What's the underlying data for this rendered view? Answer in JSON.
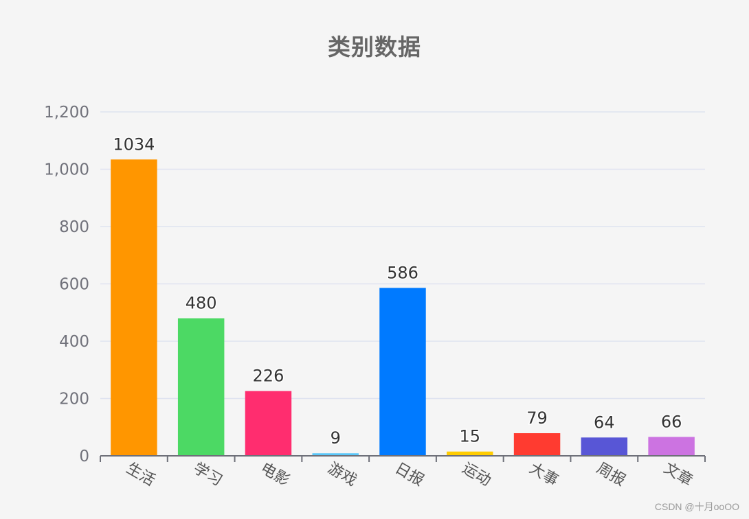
{
  "chart_data": {
    "type": "bar",
    "title": "类别数据",
    "categories": [
      "生活",
      "学习",
      "电影",
      "游戏",
      "日报",
      "运动",
      "大事",
      "周报",
      "文章"
    ],
    "values": [
      1034,
      480,
      226,
      9,
      586,
      15,
      79,
      64,
      66
    ],
    "data_labels": [
      "1034",
      "480",
      "226",
      "9",
      "586",
      "15",
      "79",
      "64",
      "66"
    ],
    "bar_colors": [
      "#ff9600",
      "#4cd964",
      "#ff2d6f",
      "#5ac8fa",
      "#007aff",
      "#ffcc00",
      "#ff3b30",
      "#5856d6",
      "#cc73e1"
    ],
    "ylim": [
      0,
      1200
    ],
    "y_ticks": [
      0,
      200,
      400,
      600,
      800,
      1000,
      1200
    ],
    "y_tick_labels": [
      "0",
      "200",
      "400",
      "600",
      "800",
      "1,000",
      "1,200"
    ],
    "grid": true,
    "xlabel": "",
    "ylabel": "",
    "x_label_rotation_deg": -30
  },
  "watermark": "CSDN @十月ooOO"
}
